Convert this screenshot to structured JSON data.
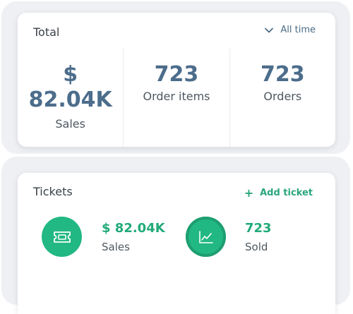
{
  "total": {
    "title": "Total",
    "filter_label": "All time",
    "stats": [
      {
        "value": "$ 82.04K",
        "label": "Sales"
      },
      {
        "value": "723",
        "label": "Order items"
      },
      {
        "value": "723",
        "label": "Orders"
      }
    ]
  },
  "tickets": {
    "title": "Tickets",
    "add_label": "Add ticket",
    "metrics": [
      {
        "value": "$ 82.04K",
        "label": "Sales",
        "icon": "ticket-icon"
      },
      {
        "value": "723",
        "label": "Sold",
        "icon": "line-chart-icon"
      }
    ]
  },
  "colors": {
    "accent_green": "#22b884",
    "stat_blue": "#4c6d8b"
  }
}
